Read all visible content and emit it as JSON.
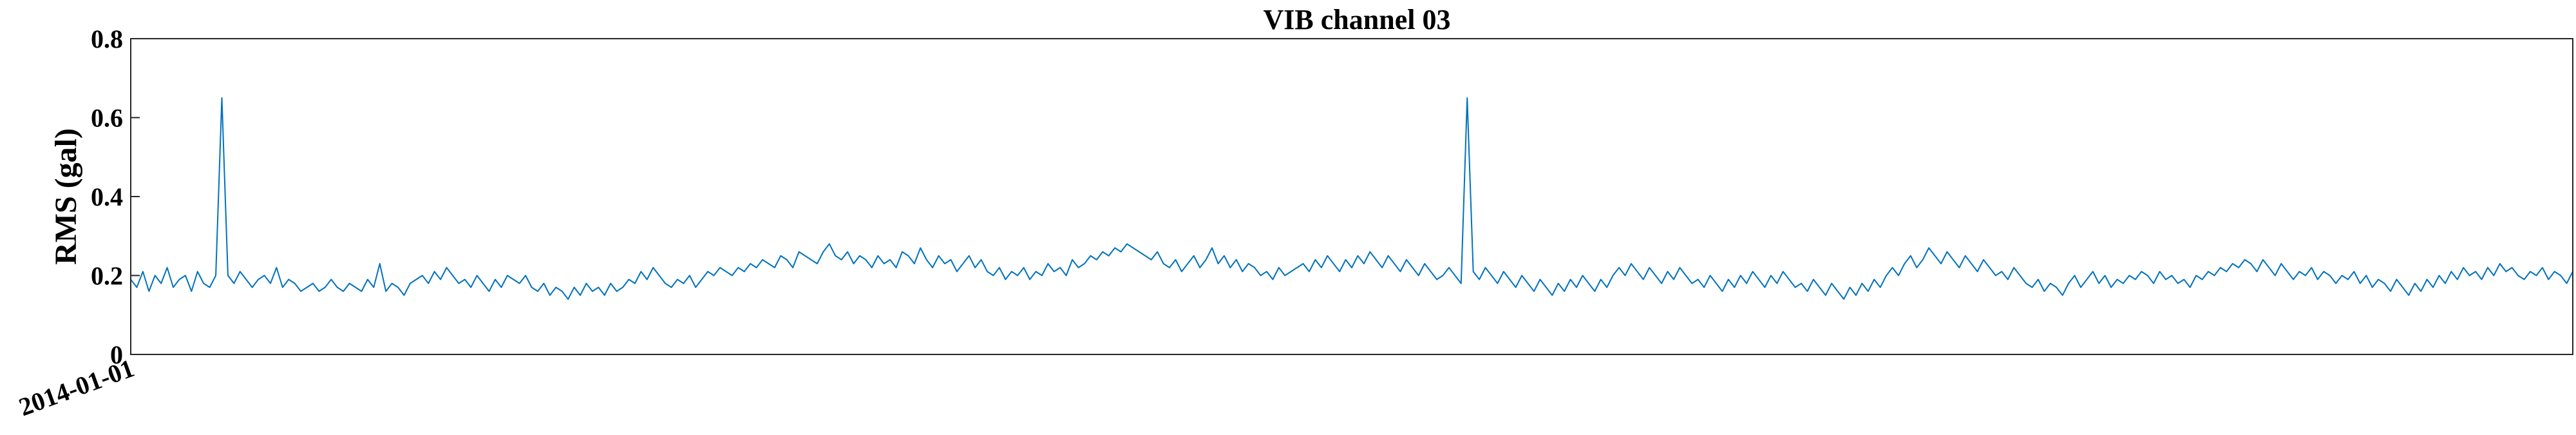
{
  "chart_data": {
    "type": "line",
    "title": "VIB channel 03",
    "xlabel": "",
    "ylabel": "RMS (gal)",
    "ylim": [
      0,
      0.8
    ],
    "yticks": [
      0,
      0.2,
      0.4,
      0.6,
      0.8
    ],
    "ytick_labels": [
      "0",
      "0.2",
      "0.4",
      "0.6",
      "0.8"
    ],
    "xtick_labels": [
      "2014-01-01"
    ],
    "grid": false,
    "legend": "none",
    "series": [
      {
        "color": "#0072BD",
        "y": [
          0.19,
          0.17,
          0.21,
          0.16,
          0.2,
          0.18,
          0.22,
          0.17,
          0.19,
          0.2,
          0.16,
          0.21,
          0.18,
          0.17,
          0.2,
          0.65,
          0.2,
          0.18,
          0.21,
          0.19,
          0.17,
          0.19,
          0.2,
          0.18,
          0.22,
          0.17,
          0.19,
          0.18,
          0.16,
          0.17,
          0.18,
          0.16,
          0.17,
          0.19,
          0.17,
          0.16,
          0.18,
          0.17,
          0.16,
          0.19,
          0.17,
          0.23,
          0.16,
          0.18,
          0.17,
          0.15,
          0.18,
          0.19,
          0.2,
          0.18,
          0.21,
          0.19,
          0.22,
          0.2,
          0.18,
          0.19,
          0.17,
          0.2,
          0.18,
          0.16,
          0.19,
          0.17,
          0.2,
          0.19,
          0.18,
          0.2,
          0.17,
          0.16,
          0.18,
          0.15,
          0.17,
          0.16,
          0.14,
          0.17,
          0.15,
          0.18,
          0.16,
          0.17,
          0.15,
          0.18,
          0.16,
          0.17,
          0.19,
          0.18,
          0.21,
          0.19,
          0.22,
          0.2,
          0.18,
          0.17,
          0.19,
          0.18,
          0.2,
          0.17,
          0.19,
          0.21,
          0.2,
          0.22,
          0.21,
          0.2,
          0.22,
          0.21,
          0.23,
          0.22,
          0.24,
          0.23,
          0.22,
          0.25,
          0.24,
          0.22,
          0.26,
          0.25,
          0.24,
          0.23,
          0.26,
          0.28,
          0.25,
          0.24,
          0.26,
          0.23,
          0.25,
          0.24,
          0.22,
          0.25,
          0.23,
          0.24,
          0.22,
          0.26,
          0.25,
          0.23,
          0.27,
          0.24,
          0.22,
          0.25,
          0.23,
          0.24,
          0.21,
          0.23,
          0.25,
          0.22,
          0.24,
          0.21,
          0.2,
          0.22,
          0.19,
          0.21,
          0.2,
          0.22,
          0.19,
          0.21,
          0.2,
          0.23,
          0.21,
          0.22,
          0.2,
          0.24,
          0.22,
          0.23,
          0.25,
          0.24,
          0.26,
          0.25,
          0.27,
          0.26,
          0.28,
          0.27,
          0.26,
          0.25,
          0.24,
          0.26,
          0.23,
          0.22,
          0.24,
          0.21,
          0.23,
          0.25,
          0.22,
          0.24,
          0.27,
          0.23,
          0.25,
          0.22,
          0.24,
          0.21,
          0.23,
          0.22,
          0.2,
          0.21,
          0.19,
          0.22,
          0.2,
          0.21,
          0.22,
          0.23,
          0.21,
          0.24,
          0.22,
          0.25,
          0.23,
          0.21,
          0.24,
          0.22,
          0.25,
          0.23,
          0.26,
          0.24,
          0.22,
          0.25,
          0.23,
          0.21,
          0.24,
          0.22,
          0.2,
          0.23,
          0.21,
          0.19,
          0.2,
          0.22,
          0.2,
          0.18,
          0.65,
          0.21,
          0.19,
          0.22,
          0.2,
          0.18,
          0.21,
          0.19,
          0.17,
          0.2,
          0.18,
          0.16,
          0.19,
          0.17,
          0.15,
          0.18,
          0.16,
          0.19,
          0.17,
          0.2,
          0.18,
          0.16,
          0.19,
          0.17,
          0.2,
          0.22,
          0.2,
          0.23,
          0.21,
          0.19,
          0.22,
          0.2,
          0.18,
          0.21,
          0.19,
          0.22,
          0.2,
          0.18,
          0.19,
          0.17,
          0.2,
          0.18,
          0.16,
          0.19,
          0.17,
          0.2,
          0.18,
          0.21,
          0.19,
          0.17,
          0.2,
          0.18,
          0.21,
          0.19,
          0.17,
          0.18,
          0.16,
          0.19,
          0.17,
          0.15,
          0.18,
          0.16,
          0.14,
          0.17,
          0.15,
          0.18,
          0.16,
          0.19,
          0.17,
          0.2,
          0.22,
          0.2,
          0.23,
          0.25,
          0.22,
          0.24,
          0.27,
          0.25,
          0.23,
          0.26,
          0.24,
          0.22,
          0.25,
          0.23,
          0.21,
          0.24,
          0.22,
          0.2,
          0.21,
          0.19,
          0.22,
          0.2,
          0.18,
          0.17,
          0.19,
          0.16,
          0.18,
          0.17,
          0.15,
          0.18,
          0.2,
          0.17,
          0.19,
          0.21,
          0.18,
          0.2,
          0.17,
          0.19,
          0.18,
          0.2,
          0.19,
          0.21,
          0.2,
          0.18,
          0.21,
          0.19,
          0.2,
          0.18,
          0.19,
          0.17,
          0.2,
          0.19,
          0.21,
          0.2,
          0.22,
          0.21,
          0.23,
          0.22,
          0.24,
          0.23,
          0.21,
          0.24,
          0.22,
          0.2,
          0.23,
          0.21,
          0.19,
          0.21,
          0.2,
          0.22,
          0.19,
          0.21,
          0.2,
          0.18,
          0.2,
          0.19,
          0.21,
          0.18,
          0.2,
          0.17,
          0.19,
          0.18,
          0.16,
          0.19,
          0.17,
          0.15,
          0.18,
          0.16,
          0.19,
          0.17,
          0.2,
          0.18,
          0.21,
          0.19,
          0.22,
          0.2,
          0.21,
          0.19,
          0.22,
          0.2,
          0.23,
          0.21,
          0.22,
          0.2,
          0.19,
          0.21,
          0.2,
          0.22,
          0.19,
          0.21,
          0.2,
          0.18,
          0.21
        ]
      }
    ]
  }
}
